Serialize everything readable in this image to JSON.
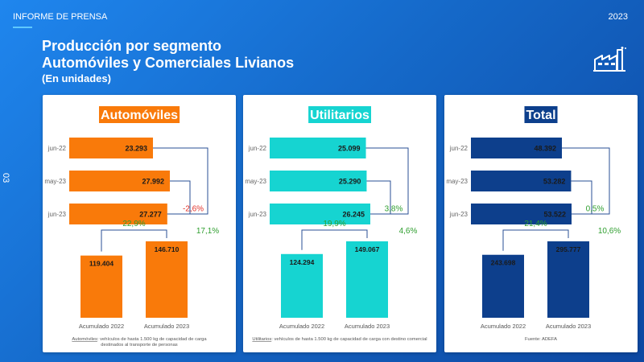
{
  "header": {
    "report_label": "INFORME DE PRENSA",
    "year": "2023",
    "page_number": "03",
    "title_line1": "Producción por segmento",
    "title_line2": "Automóviles y Comerciales Livianos",
    "subtitle": "(En unidades)"
  },
  "icon": "factory-icon",
  "colors": {
    "automoviles": "#f97a0a",
    "utilitarios": "#16d4d1",
    "total": "#0d3f8c",
    "negative": "#e0322a",
    "positive": "#2f9e2f",
    "connector": "#2a4f94"
  },
  "chart_data": [
    {
      "type": "bar",
      "title": "Automóviles",
      "color_key": "automoviles",
      "monthly": {
        "categories": [
          "jun-22",
          "may-23",
          "jun-23"
        ],
        "values": [
          23293,
          27992,
          27277
        ],
        "labels": [
          "23.293",
          "27.992",
          "27.277"
        ],
        "changes": [
          {
            "from": "may-23",
            "to": "jun-23",
            "label": "-2,6%",
            "sign": "negative"
          },
          {
            "from": "jun-22",
            "to": "jun-23",
            "label": "17,1%",
            "sign": "positive"
          }
        ]
      },
      "accumulated": {
        "categories": [
          "Acumulado 2022",
          "Acumulado 2023"
        ],
        "values": [
          119404,
          146710
        ],
        "labels": [
          "119.404",
          "146.710"
        ],
        "change_label": "22,9%"
      },
      "footnote_term": "Automóviles",
      "footnote_text": ": vehículos de hasta 1.500 kg de capacidad de carga",
      "footnote_text2": "destinados al transporte de personas"
    },
    {
      "type": "bar",
      "title": "Utilitarios",
      "color_key": "utilitarios",
      "monthly": {
        "categories": [
          "jun-22",
          "may-23",
          "jun-23"
        ],
        "values": [
          25099,
          25290,
          26245
        ],
        "labels": [
          "25.099",
          "25.290",
          "26.245"
        ],
        "changes": [
          {
            "from": "may-23",
            "to": "jun-23",
            "label": "3,8%",
            "sign": "positive"
          },
          {
            "from": "jun-22",
            "to": "jun-23",
            "label": "4,6%",
            "sign": "positive"
          }
        ]
      },
      "accumulated": {
        "categories": [
          "Acumulado 2022",
          "Acumulado 2023"
        ],
        "values": [
          124294,
          149067
        ],
        "labels": [
          "124.294",
          "149.067"
        ],
        "change_label": "19,9%"
      },
      "footnote_term": "Utilitarios",
      "footnote_text": ": vehículos de hasta 1.500 kg de capacidad de carga con destino comercial",
      "footnote_text2": ""
    },
    {
      "type": "bar",
      "title": "Total",
      "color_key": "total",
      "monthly": {
        "categories": [
          "jun-22",
          "may-23",
          "jun-23"
        ],
        "values": [
          48392,
          53282,
          53522
        ],
        "labels": [
          "48.392",
          "53.282",
          "53.522"
        ],
        "changes": [
          {
            "from": "may-23",
            "to": "jun-23",
            "label": "0,5%",
            "sign": "positive"
          },
          {
            "from": "jun-22",
            "to": "jun-23",
            "label": "10,6%",
            "sign": "positive"
          }
        ]
      },
      "accumulated": {
        "categories": [
          "Acumulado 2022",
          "Acumulado 2023"
        ],
        "values": [
          243698,
          295777
        ],
        "labels": [
          "243.698",
          "295.777"
        ],
        "change_label": "21,4%"
      },
      "footnote_term": "",
      "footnote_text": "Fuente: ADEFA",
      "footnote_text2": ""
    }
  ]
}
